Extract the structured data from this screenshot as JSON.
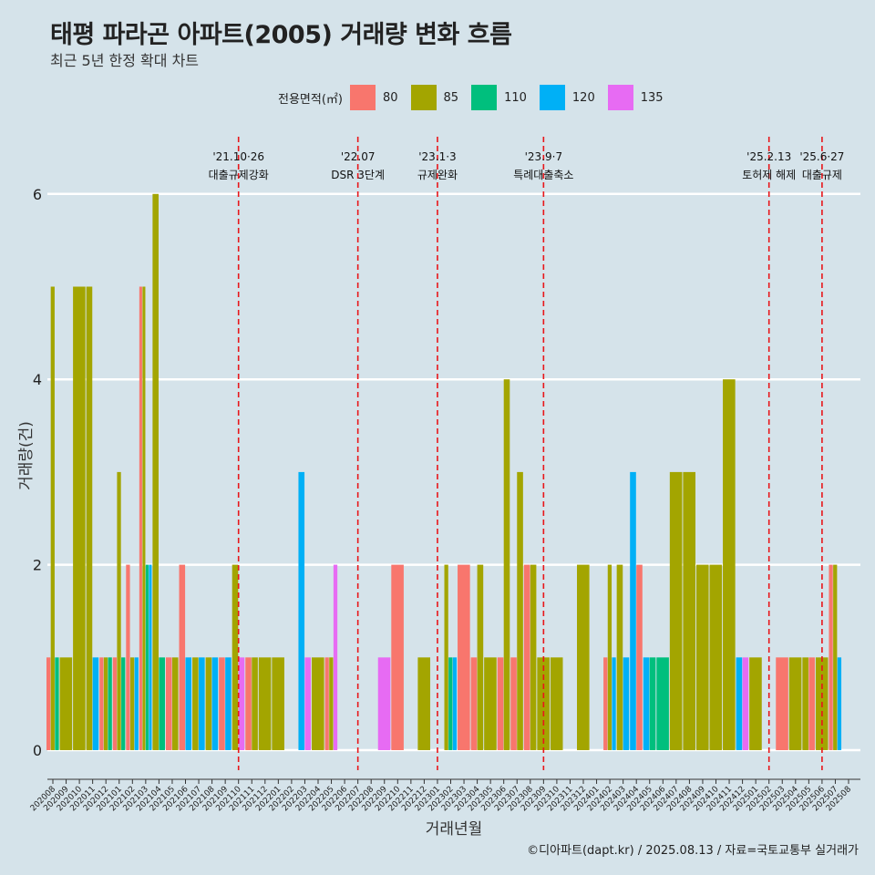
{
  "title": "태평 파라곤 아파트(2005) 거래량 변화 흐름",
  "subtitle": "최근 5년 한정 확대 차트",
  "legend": {
    "title": "전용면적(㎡)",
    "items": [
      {
        "label": "80",
        "color": "#F8766D"
      },
      {
        "label": "85",
        "color": "#A3A500"
      },
      {
        "label": "110",
        "color": "#00BF7D"
      },
      {
        "label": "120",
        "color": "#00B0F6"
      },
      {
        "label": "135",
        "color": "#E76BF3"
      }
    ]
  },
  "caption": "©디아파트(dapt.kr) / 2025.08.13 / 자료=국토교통부 실거래가",
  "chart_data": {
    "type": "bar",
    "xlabel": "거래년월",
    "ylabel": "거래량(건)",
    "ylim": [
      0,
      6
    ],
    "yticks": [
      0,
      2,
      4,
      6
    ],
    "grid": "horizontal",
    "months": [
      "202008",
      "202009",
      "202010",
      "202011",
      "202012",
      "202101",
      "202102",
      "202103",
      "202104",
      "202105",
      "202106",
      "202107",
      "202108",
      "202109",
      "202110",
      "202111",
      "202112",
      "202201",
      "202202",
      "202203",
      "202204",
      "202205",
      "202206",
      "202207",
      "202208",
      "202209",
      "202210",
      "202211",
      "202212",
      "202301",
      "202302",
      "202303",
      "202304",
      "202305",
      "202306",
      "202307",
      "202308",
      "202309",
      "202310",
      "202311",
      "202312",
      "202401",
      "202402",
      "202403",
      "202404",
      "202405",
      "202406",
      "202407",
      "202408",
      "202409",
      "202410",
      "202411",
      "202412",
      "202501",
      "202502",
      "202503",
      "202504",
      "202505",
      "202506",
      "202507",
      "202508"
    ],
    "bars": [
      {
        "month": "202008",
        "sizes": [
          "80",
          "85",
          "110"
        ],
        "values": [
          1,
          5,
          1
        ]
      },
      {
        "month": "202009",
        "sizes": [
          "85"
        ],
        "values": [
          1
        ]
      },
      {
        "month": "202010",
        "sizes": [
          "85"
        ],
        "values": [
          5
        ]
      },
      {
        "month": "202011",
        "sizes": [
          "85",
          "120"
        ],
        "values": [
          5,
          1
        ]
      },
      {
        "month": "202012",
        "sizes": [
          "80",
          "85",
          "110"
        ],
        "values": [
          1,
          1,
          1
        ]
      },
      {
        "month": "202101",
        "sizes": [
          "80",
          "85",
          "110"
        ],
        "values": [
          1,
          3,
          1
        ]
      },
      {
        "month": "202102",
        "sizes": [
          "80",
          "85",
          "120"
        ],
        "values": [
          2,
          1,
          1
        ]
      },
      {
        "month": "202103",
        "sizes": [
          "80",
          "85",
          "110",
          "120"
        ],
        "values": [
          5,
          5,
          2,
          2
        ]
      },
      {
        "month": "202104",
        "sizes": [
          "85",
          "110"
        ],
        "values": [
          6,
          1
        ]
      },
      {
        "month": "202105",
        "sizes": [
          "80",
          "85"
        ],
        "values": [
          1,
          1
        ]
      },
      {
        "month": "202106",
        "sizes": [
          "80",
          "120"
        ],
        "values": [
          2,
          1
        ]
      },
      {
        "month": "202107",
        "sizes": [
          "85",
          "120"
        ],
        "values": [
          1,
          1
        ]
      },
      {
        "month": "202108",
        "sizes": [
          "85",
          "120"
        ],
        "values": [
          1,
          1
        ]
      },
      {
        "month": "202109",
        "sizes": [
          "80",
          "120"
        ],
        "values": [
          1,
          1
        ]
      },
      {
        "month": "202110",
        "sizes": [
          "85",
          "135"
        ],
        "values": [
          2,
          1
        ]
      },
      {
        "month": "202111",
        "sizes": [
          "80",
          "85"
        ],
        "values": [
          1,
          1
        ]
      },
      {
        "month": "202112",
        "sizes": [
          "85"
        ],
        "values": [
          1
        ]
      },
      {
        "month": "202201",
        "sizes": [
          "85"
        ],
        "values": [
          1
        ]
      },
      {
        "month": "202203",
        "sizes": [
          "120",
          "135"
        ],
        "values": [
          3,
          1
        ]
      },
      {
        "month": "202204",
        "sizes": [
          "85"
        ],
        "values": [
          1
        ]
      },
      {
        "month": "202205",
        "sizes": [
          "80",
          "85",
          "135"
        ],
        "values": [
          1,
          1,
          2
        ]
      },
      {
        "month": "202209",
        "sizes": [
          "135"
        ],
        "values": [
          1
        ]
      },
      {
        "month": "202210",
        "sizes": [
          "80"
        ],
        "values": [
          2
        ]
      },
      {
        "month": "202212",
        "sizes": [
          "85"
        ],
        "values": [
          1
        ]
      },
      {
        "month": "202302",
        "sizes": [
          "85",
          "110",
          "120"
        ],
        "values": [
          2,
          1,
          1
        ]
      },
      {
        "month": "202303",
        "sizes": [
          "80"
        ],
        "values": [
          2
        ]
      },
      {
        "month": "202304",
        "sizes": [
          "80",
          "85"
        ],
        "values": [
          1,
          2
        ]
      },
      {
        "month": "202305",
        "sizes": [
          "85"
        ],
        "values": [
          1
        ]
      },
      {
        "month": "202306",
        "sizes": [
          "80",
          "85"
        ],
        "values": [
          1,
          4
        ]
      },
      {
        "month": "202307",
        "sizes": [
          "80",
          "85"
        ],
        "values": [
          1,
          3
        ]
      },
      {
        "month": "202308",
        "sizes": [
          "80",
          "85"
        ],
        "values": [
          2,
          2
        ]
      },
      {
        "month": "202309",
        "sizes": [
          "85"
        ],
        "values": [
          1
        ]
      },
      {
        "month": "202310",
        "sizes": [
          "85"
        ],
        "values": [
          1
        ]
      },
      {
        "month": "202312",
        "sizes": [
          "85"
        ],
        "values": [
          2
        ]
      },
      {
        "month": "202402",
        "sizes": [
          "80",
          "85",
          "120"
        ],
        "values": [
          1,
          2,
          1
        ]
      },
      {
        "month": "202403",
        "sizes": [
          "85",
          "120"
        ],
        "values": [
          2,
          1
        ]
      },
      {
        "month": "202404",
        "sizes": [
          "120",
          "80"
        ],
        "values": [
          3,
          2
        ]
      },
      {
        "month": "202405",
        "sizes": [
          "120",
          "110"
        ],
        "values": [
          1,
          1
        ]
      },
      {
        "month": "202406",
        "sizes": [
          "110"
        ],
        "values": [
          1
        ]
      },
      {
        "month": "202407",
        "sizes": [
          "85"
        ],
        "values": [
          3
        ]
      },
      {
        "month": "202408",
        "sizes": [
          "85"
        ],
        "values": [
          3
        ]
      },
      {
        "month": "202409",
        "sizes": [
          "85"
        ],
        "values": [
          2
        ]
      },
      {
        "month": "202410",
        "sizes": [
          "85"
        ],
        "values": [
          2
        ]
      },
      {
        "month": "202411",
        "sizes": [
          "85"
        ],
        "values": [
          4
        ]
      },
      {
        "month": "202412",
        "sizes": [
          "120",
          "135"
        ],
        "values": [
          1,
          1
        ]
      },
      {
        "month": "202501",
        "sizes": [
          "85"
        ],
        "values": [
          1
        ]
      },
      {
        "month": "202503",
        "sizes": [
          "80"
        ],
        "values": [
          1
        ]
      },
      {
        "month": "202504",
        "sizes": [
          "85"
        ],
        "values": [
          1
        ]
      },
      {
        "month": "202505",
        "sizes": [
          "85",
          "80"
        ],
        "values": [
          1,
          1
        ]
      },
      {
        "month": "202506",
        "sizes": [
          "85"
        ],
        "values": [
          1
        ]
      },
      {
        "month": "202507",
        "sizes": [
          "80",
          "85",
          "120"
        ],
        "values": [
          2,
          2,
          1
        ]
      }
    ],
    "events": [
      {
        "month": "202110",
        "date": "'21.10·26",
        "label": "대출규제강화"
      },
      {
        "month": "202207",
        "date": "'22.07",
        "label": "DSR 3단계"
      },
      {
        "month": "202301",
        "date": "'23.1·3",
        "label": "규제완화"
      },
      {
        "month": "202309",
        "date": "'23.9·7",
        "label": "특례대출축소"
      },
      {
        "month": "202502",
        "date": "'25.2.13",
        "label": "토허제 해제"
      },
      {
        "month": "202506",
        "date": "'25.6·27",
        "label": "대출규제"
      }
    ]
  }
}
